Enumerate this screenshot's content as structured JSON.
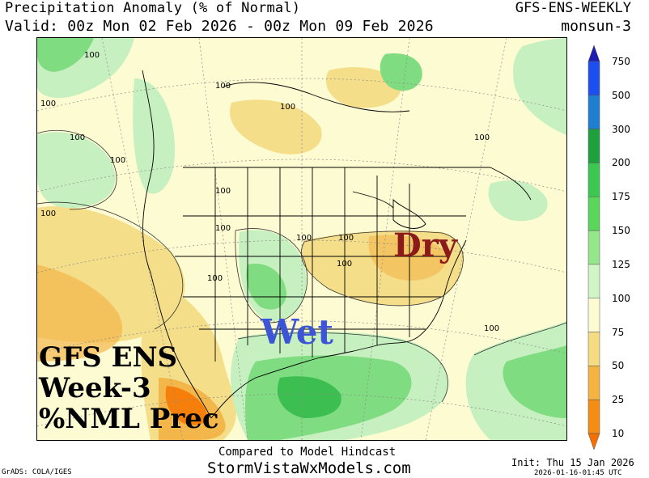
{
  "header": {
    "title": "Precipitation Anomaly (% of Normal)",
    "product": "GFS-ENS-WEEKLY",
    "valid": "Valid: 00z Mon 02 Feb 2026 - 00z Mon 09 Feb 2026",
    "run": "monsun-3"
  },
  "map": {
    "contour_value": "100",
    "annotations": {
      "dry": "Dry",
      "wet": "Wet",
      "overlay_line1": "GFS ENS",
      "overlay_line2": "Week-3",
      "overlay_line3": "%NML Prec"
    },
    "colors": {
      "dry": "#8b1a1a",
      "wet": "#3b55d6",
      "near_normal": "#fdfbd2",
      "slightly_dry": "#f5de8a",
      "dry_fill": "#f2b64a",
      "very_dry": "#f57f0a",
      "wet_light": "#c6f0c0",
      "wet_medium": "#7fdc80",
      "wet_heavy": "#3cbf50"
    }
  },
  "colorbar": {
    "levels": [
      "750",
      "500",
      "300",
      "200",
      "175",
      "150",
      "125",
      "100",
      "75",
      "50",
      "25",
      "10"
    ],
    "colors": [
      "#1e1eb4",
      "#1d4ff0",
      "#1e7fd0",
      "#1ea03c",
      "#3cc850",
      "#5ad75a",
      "#96e68c",
      "#d2f5c8",
      "#fdfbd2",
      "#f5dc82",
      "#f5b441",
      "#f58c14",
      "#f56e00"
    ]
  },
  "footer": {
    "line1": "Compared to Model Hindcast",
    "line2": "StormVistaWxModels.com",
    "credit": "GrADS: COLA/IGES",
    "init": "Init: Thu 15 Jan 2026",
    "timestamp": "2026-01-16-01:45 UTC"
  }
}
